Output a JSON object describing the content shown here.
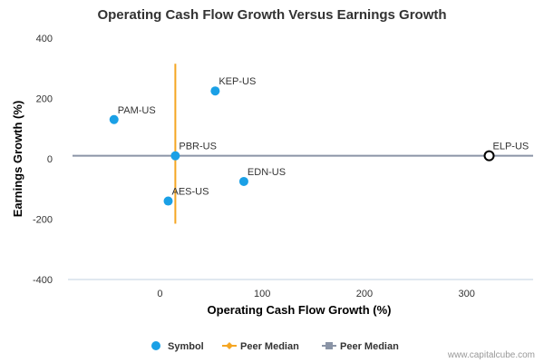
{
  "chart_data": {
    "type": "scatter",
    "title": "Operating Cash Flow Growth Versus Earnings Growth",
    "xlabel": "Operating Cash Flow Growth (%)",
    "ylabel": "Earnings Growth (%)",
    "xlim": [
      -90,
      365
    ],
    "ylim": [
      -400,
      400
    ],
    "x_ticks": [
      0,
      100,
      200,
      300
    ],
    "y_ticks": [
      400,
      200,
      0,
      -200,
      -400
    ],
    "grid": false,
    "legend_position": "bottom",
    "points": [
      {
        "label": "PAM-US",
        "x": -45,
        "y": 130,
        "style": "filled"
      },
      {
        "label": "KEP-US",
        "x": 54,
        "y": 225,
        "style": "filled"
      },
      {
        "label": "PBR-US",
        "x": 15,
        "y": 10,
        "style": "filled"
      },
      {
        "label": "EDN-US",
        "x": 82,
        "y": -75,
        "style": "filled"
      },
      {
        "label": "AES-US",
        "x": 8,
        "y": -140,
        "style": "filled"
      },
      {
        "label": "ELP-US",
        "x": 322,
        "y": 10,
        "style": "hollow"
      }
    ],
    "peer_median_x": 15,
    "peer_median_y": 10,
    "vertical_median_yrange": [
      -215,
      315
    ],
    "legend": [
      {
        "name": "Symbol",
        "marker": "circle",
        "color": "#1aa0e6"
      },
      {
        "name": "Peer Median",
        "marker": "diamond-line",
        "color": "#f5a623"
      },
      {
        "name": "Peer Median",
        "marker": "square-line",
        "color": "#8a94a6"
      }
    ],
    "colors": {
      "symbol": "#1aa0e6",
      "vertical_median": "#f5a623",
      "horizontal_median": "#8a94a6",
      "hollow_stroke": "#000000"
    }
  },
  "credit": "www.capitalcube.com"
}
